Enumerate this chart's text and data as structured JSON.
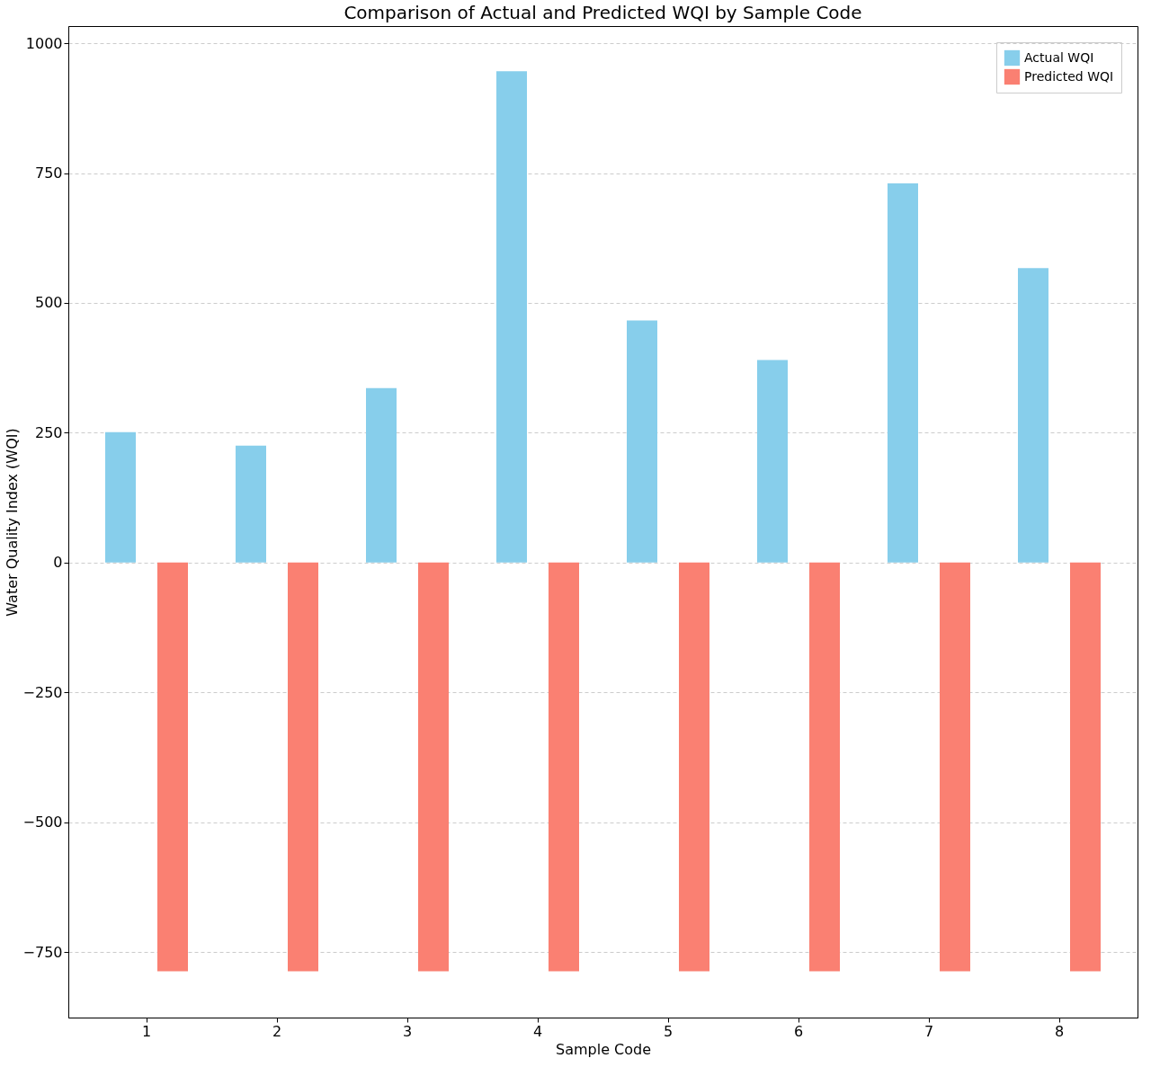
{
  "chart_data": {
    "type": "bar",
    "title": "Comparison of Actual and Predicted WQI by Sample Code",
    "xlabel": "Sample Code",
    "ylabel": "Water Quality Index (WQI)",
    "categories": [
      "1",
      "2",
      "3",
      "4",
      "5",
      "6",
      "7",
      "8"
    ],
    "series": [
      {
        "name": "Actual WQI",
        "color": "#87ceeb",
        "values": [
          251,
          225,
          336,
          946,
          466,
          390,
          730,
          567
        ]
      },
      {
        "name": "Predicted WQI",
        "color": "#fa8072",
        "values": [
          -787,
          -787,
          -787,
          -787,
          -787,
          -787,
          -787,
          -787
        ]
      }
    ],
    "ylim": [
      -876,
      1033
    ],
    "yticks": [
      -750,
      -500,
      -250,
      0,
      250,
      500,
      750,
      1000
    ],
    "grid": "y",
    "legend": "top right"
  }
}
